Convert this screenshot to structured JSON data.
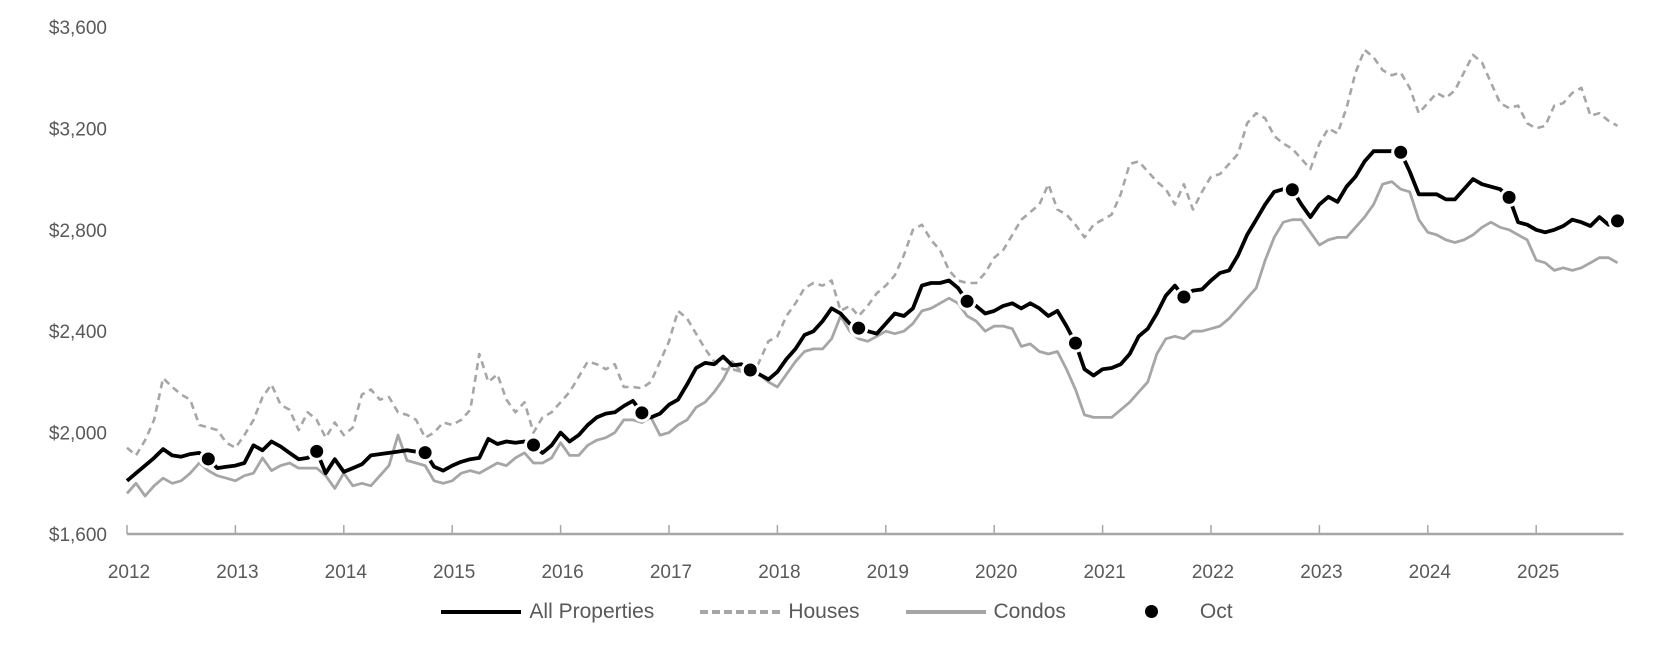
{
  "chart_data": {
    "type": "line",
    "title": "",
    "xlabel": "",
    "ylabel": "",
    "ylim": [
      1600,
      3600
    ],
    "yticks": [
      "$1,600",
      "$2,000",
      "$2,400",
      "$2,800",
      "$3,200",
      "$3,600"
    ],
    "ytick_values": [
      1600,
      2000,
      2400,
      2800,
      3200,
      3600
    ],
    "xticks": [
      "2012",
      "2013",
      "2014",
      "2015",
      "2016",
      "2017",
      "2018",
      "2019",
      "2020",
      "2021",
      "2022",
      "2023",
      "2024",
      "2025"
    ],
    "x_start": "2012-01",
    "x_frequency": "monthly",
    "x_end": "2025-10",
    "grid": false,
    "legend_position": "bottom",
    "colors": {
      "all": "#000000",
      "houses": "#a6a6a6",
      "condos": "#a6a6a6",
      "axis": "#a6a6a6",
      "text": "#595959"
    },
    "series": [
      {
        "name": "All Properties",
        "style": "solid-black",
        "values": [
          1810,
          1840,
          1870,
          1900,
          1935,
          1910,
          1905,
          1915,
          1920,
          1896,
          1860,
          1865,
          1870,
          1880,
          1950,
          1930,
          1965,
          1945,
          1920,
          1895,
          1900,
          1926,
          1840,
          1895,
          1845,
          1860,
          1875,
          1910,
          1915,
          1920,
          1925,
          1930,
          1925,
          1921,
          1865,
          1850,
          1870,
          1885,
          1895,
          1900,
          1975,
          1955,
          1965,
          1960,
          1965,
          1951,
          1920,
          1950,
          2000,
          1965,
          1990,
          2030,
          2060,
          2075,
          2080,
          2105,
          2125,
          2078,
          2060,
          2075,
          2110,
          2130,
          2190,
          2255,
          2275,
          2270,
          2300,
          2265,
          2270,
          2247,
          2230,
          2210,
          2240,
          2290,
          2330,
          2385,
          2400,
          2440,
          2490,
          2470,
          2430,
          2412,
          2400,
          2390,
          2430,
          2470,
          2460,
          2490,
          2580,
          2590,
          2590,
          2600,
          2570,
          2518,
          2500,
          2470,
          2480,
          2500,
          2510,
          2490,
          2510,
          2490,
          2460,
          2480,
          2420,
          2353,
          2250,
          2225,
          2250,
          2255,
          2270,
          2310,
          2380,
          2410,
          2470,
          2540,
          2580,
          2535,
          2560,
          2565,
          2600,
          2630,
          2640,
          2700,
          2780,
          2840,
          2900,
          2950,
          2960,
          2958,
          2900,
          2850,
          2900,
          2930,
          2910,
          2970,
          3010,
          3070,
          3110,
          3110,
          3110,
          3106,
          3030,
          2940,
          2940,
          2940,
          2920,
          2920,
          2960,
          3000,
          2980,
          2970,
          2960,
          2928,
          2830,
          2820,
          2800,
          2790,
          2800,
          2815,
          2840,
          2830,
          2815,
          2850,
          2820,
          2835
        ]
      },
      {
        "name": "Houses",
        "style": "dashed-gray",
        "values": [
          1940,
          1910,
          1970,
          2050,
          2215,
          2180,
          2150,
          2130,
          2030,
          2020,
          2010,
          1960,
          1940,
          1990,
          2050,
          2140,
          2190,
          2110,
          2090,
          2010,
          2080,
          2050,
          1980,
          2040,
          1990,
          2020,
          2150,
          2170,
          2130,
          2140,
          2080,
          2070,
          2050,
          1980,
          2000,
          2040,
          2030,
          2050,
          2090,
          2310,
          2200,
          2230,
          2130,
          2080,
          2120,
          2000,
          2060,
          2080,
          2120,
          2160,
          2220,
          2280,
          2270,
          2250,
          2270,
          2180,
          2180,
          2175,
          2200,
          2280,
          2360,
          2480,
          2450,
          2390,
          2330,
          2280,
          2250,
          2250,
          2240,
          2210,
          2280,
          2360,
          2380,
          2460,
          2510,
          2570,
          2590,
          2580,
          2600,
          2480,
          2500,
          2460,
          2500,
          2550,
          2580,
          2620,
          2700,
          2800,
          2820,
          2760,
          2720,
          2640,
          2600,
          2590,
          2590,
          2630,
          2690,
          2720,
          2780,
          2840,
          2870,
          2900,
          2980,
          2880,
          2860,
          2820,
          2770,
          2820,
          2840,
          2860,
          2940,
          3060,
          3070,
          3030,
          2990,
          2960,
          2900,
          2980,
          2880,
          2950,
          3010,
          3020,
          3060,
          3100,
          3220,
          3260,
          3240,
          3170,
          3140,
          3120,
          3080,
          3040,
          3140,
          3200,
          3180,
          3280,
          3420,
          3510,
          3480,
          3430,
          3410,
          3420,
          3360,
          3260,
          3300,
          3340,
          3320,
          3350,
          3420,
          3490,
          3460,
          3380,
          3300,
          3280,
          3290,
          3220,
          3200,
          3210,
          3290,
          3300,
          3340,
          3360,
          3250,
          3260,
          3230,
          3210
        ]
      },
      {
        "name": "Condos",
        "style": "solid-gray",
        "values": [
          1760,
          1800,
          1750,
          1790,
          1820,
          1800,
          1810,
          1840,
          1880,
          1850,
          1830,
          1820,
          1810,
          1830,
          1840,
          1900,
          1850,
          1870,
          1880,
          1860,
          1860,
          1860,
          1830,
          1780,
          1840,
          1790,
          1800,
          1790,
          1830,
          1870,
          1990,
          1890,
          1880,
          1870,
          1810,
          1800,
          1810,
          1840,
          1850,
          1840,
          1860,
          1880,
          1870,
          1900,
          1920,
          1880,
          1880,
          1900,
          1960,
          1910,
          1910,
          1950,
          1970,
          1980,
          2000,
          2050,
          2050,
          2040,
          2060,
          1990,
          2000,
          2030,
          2050,
          2100,
          2120,
          2160,
          2210,
          2280,
          2240,
          2250,
          2230,
          2200,
          2180,
          2230,
          2280,
          2320,
          2330,
          2330,
          2370,
          2460,
          2400,
          2370,
          2360,
          2380,
          2400,
          2390,
          2400,
          2430,
          2480,
          2490,
          2510,
          2530,
          2510,
          2460,
          2440,
          2400,
          2420,
          2420,
          2410,
          2340,
          2350,
          2320,
          2310,
          2320,
          2250,
          2170,
          2070,
          2060,
          2060,
          2060,
          2090,
          2120,
          2160,
          2200,
          2310,
          2370,
          2380,
          2370,
          2400,
          2400,
          2410,
          2420,
          2450,
          2490,
          2530,
          2570,
          2680,
          2770,
          2830,
          2840,
          2840,
          2790,
          2740,
          2760,
          2770,
          2770,
          2810,
          2850,
          2900,
          2980,
          2990,
          2960,
          2950,
          2840,
          2790,
          2780,
          2760,
          2750,
          2760,
          2780,
          2810,
          2830,
          2810,
          2800,
          2780,
          2760,
          2680,
          2670,
          2640,
          2650,
          2640,
          2650,
          2670,
          2690,
          2690,
          2670
        ]
      },
      {
        "name": "Oct",
        "style": "marker-black",
        "note": "October value of All Properties each year",
        "x": [
          "2012-10",
          "2013-10",
          "2014-10",
          "2015-10",
          "2016-10",
          "2017-10",
          "2018-10",
          "2019-10",
          "2020-10",
          "2021-10",
          "2022-10",
          "2023-10",
          "2024-10",
          "2025-10"
        ],
        "values": [
          1896,
          1926,
          1921,
          1951,
          2078,
          2247,
          2412,
          2518,
          2353,
          2535,
          2958,
          3106,
          2928,
          2835
        ]
      }
    ]
  },
  "legend": {
    "all_label": "All Properties",
    "houses_label": "Houses",
    "condos_label": "Condos",
    "oct_label": "Oct"
  }
}
